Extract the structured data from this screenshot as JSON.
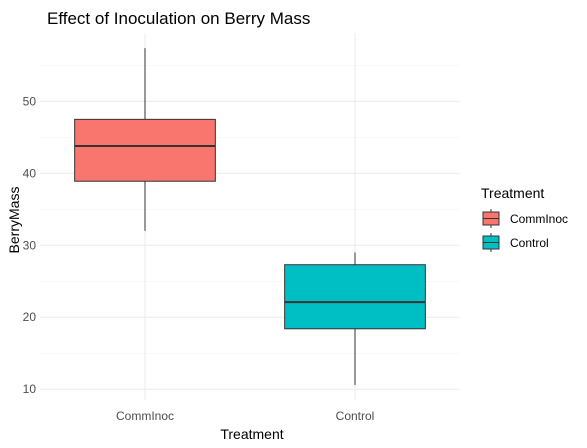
{
  "chart_data": {
    "type": "box",
    "title": "Effect of Inoculation on Berry Mass",
    "xlabel": "Treatment",
    "ylabel": "BerryMass",
    "categories": [
      "CommInoc",
      "Control"
    ],
    "ylim": [
      8.5,
      59.5
    ],
    "yticks": [
      10,
      20,
      30,
      40,
      50
    ],
    "grid": true,
    "legend": {
      "title": "Treatment",
      "placement": "right",
      "entries": [
        "CommInoc",
        "Control"
      ]
    },
    "series": [
      {
        "name": "CommInoc",
        "color": "#F8766D",
        "min": 32.0,
        "q1": 38.9,
        "median": 43.8,
        "q3": 47.5,
        "max": 57.4
      },
      {
        "name": "Control",
        "color": "#00BFC4",
        "min": 10.6,
        "q1": 18.4,
        "median": 22.1,
        "q3": 27.3,
        "max": 29.0
      }
    ]
  }
}
